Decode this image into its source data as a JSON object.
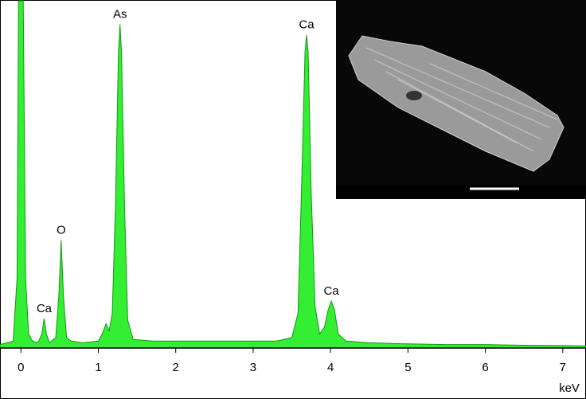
{
  "chart_data": {
    "type": "area",
    "x_label": "keV",
    "color": "#33ee33",
    "line_color": "#119911",
    "xlim": [
      -0.27,
      7.3
    ],
    "ylim": [
      0,
      100
    ],
    "xticks": [
      0,
      1,
      2,
      3,
      4,
      5,
      6,
      7
    ],
    "x": [
      -0.27,
      -0.1,
      -0.05,
      -0.03,
      0.03,
      0.06,
      0.1,
      0.15,
      0.22,
      0.27,
      0.3,
      0.33,
      0.37,
      0.45,
      0.49,
      0.52,
      0.55,
      0.59,
      0.65,
      0.8,
      1.0,
      1.05,
      1.1,
      1.14,
      1.18,
      1.22,
      1.26,
      1.28,
      1.3,
      1.34,
      1.38,
      1.45,
      1.7,
      2.0,
      2.5,
      3.0,
      3.3,
      3.5,
      3.58,
      3.63,
      3.67,
      3.69,
      3.71,
      3.75,
      3.8,
      3.86,
      3.92,
      3.97,
      4.01,
      4.05,
      4.1,
      4.2,
      4.5,
      5.0,
      5.5,
      6.0,
      6.5,
      7.0,
      7.3
    ],
    "values": [
      1,
      2,
      20,
      100,
      100,
      20,
      4,
      2,
      1.5,
      4,
      8.5,
      4,
      1.5,
      3,
      15,
      31,
      15,
      3,
      2,
      1.5,
      2,
      4,
      7,
      5,
      10,
      40,
      85,
      93,
      85,
      40,
      8,
      2.5,
      2,
      2,
      2,
      2,
      2,
      3,
      10,
      50,
      85,
      90,
      85,
      45,
      12,
      4,
      6,
      11,
      13.5,
      11,
      4,
      2,
      1.5,
      1.2,
      1,
      1,
      0.8,
      0.7,
      0.6
    ],
    "annotations": [
      {
        "text": "Ca",
        "x": 0.3
      },
      {
        "text": "O",
        "x": 0.52
      },
      {
        "text": "As",
        "x": 1.28
      },
      {
        "text": "Ca",
        "x": 3.69
      },
      {
        "text": "Ca",
        "x": 4.01
      }
    ]
  }
}
